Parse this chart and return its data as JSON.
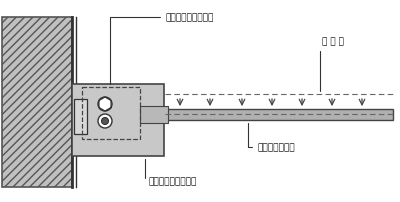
{
  "bg_color": "#ffffff",
  "wall_color": "#c0c0c0",
  "wall_hatch": "////",
  "joint_color": "#c8c8c8",
  "bar_color": "#b0b0b0",
  "label_concrete": "コンクリート壁面材",
  "label_reinforcement": "補 強 材",
  "label_slide_joint": "スライドジョイント",
  "label_slide_amount": "スライド可能量",
  "figsize": [
    4.0,
    2.03
  ],
  "dpi": 100
}
